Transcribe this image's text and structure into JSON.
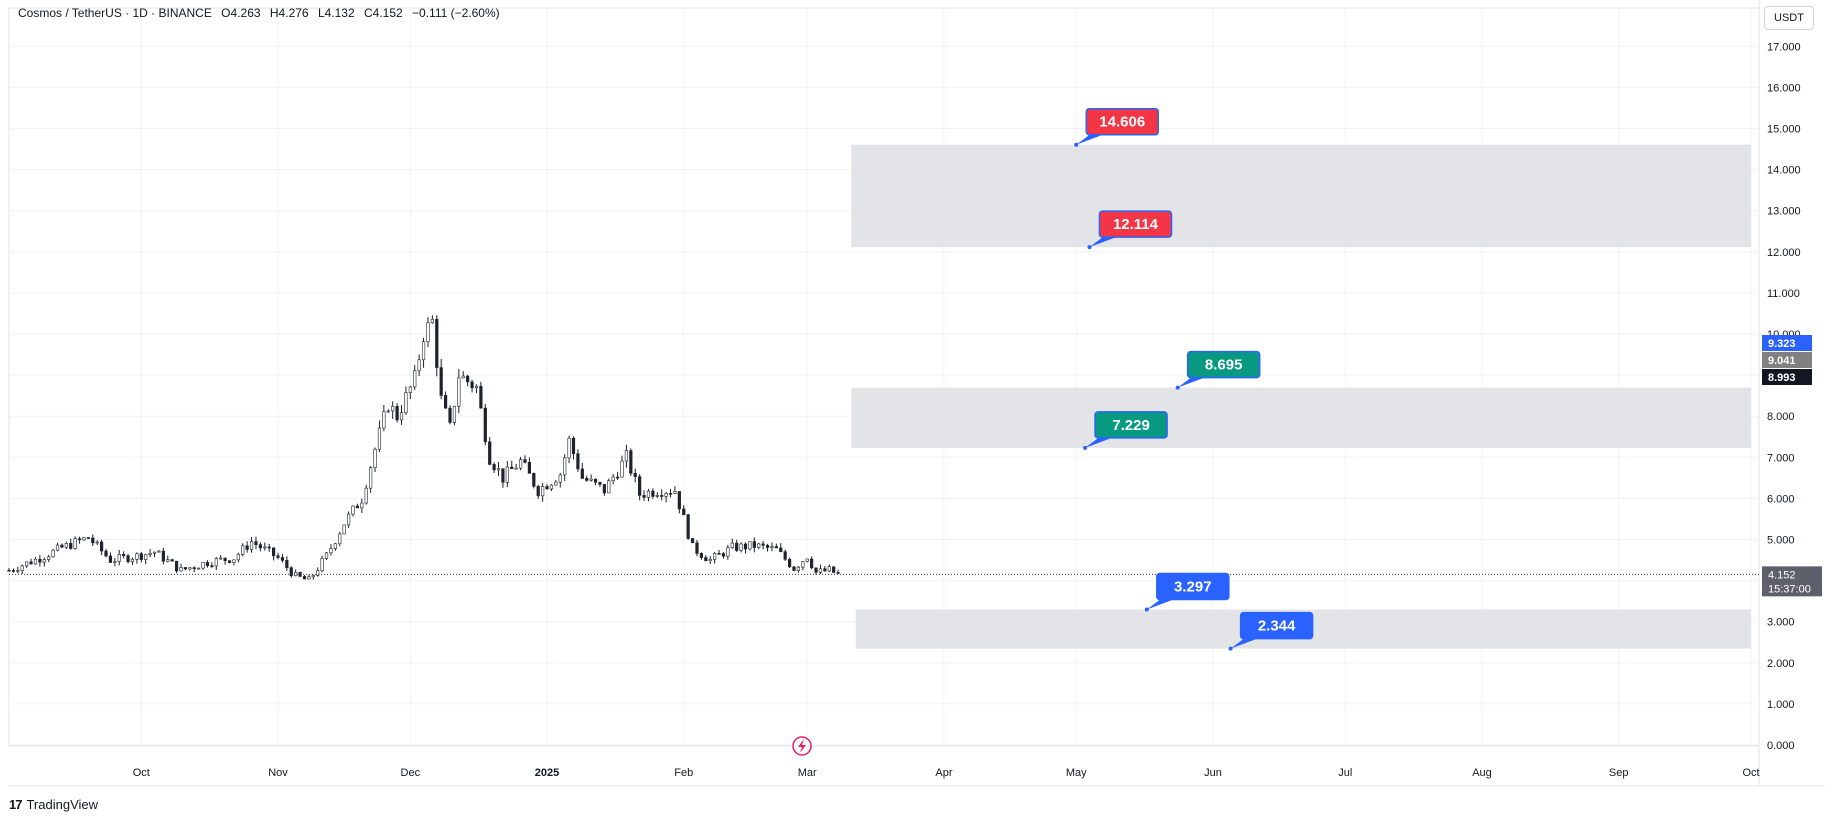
{
  "legend": {
    "symbol": "Cosmos / TetherUS · 1D · BINANCE",
    "open": "O4.263",
    "high": "H4.276",
    "low": "L4.132",
    "close": "C4.152",
    "change": "−0.111 (−2.60%)"
  },
  "currency_button": "USDT",
  "brand": {
    "logo": "17",
    "name": "TradingView"
  },
  "colors": {
    "up": "#089981",
    "down": "#f23645",
    "candle_body": "#1e222d",
    "zone": "#e0e1e5",
    "red_label": "#f23645",
    "green_label": "#089981",
    "blue_label": "#2962ff"
  },
  "chart_data": {
    "type": "candlestick",
    "y_axis": {
      "min": 0,
      "max": 17.8,
      "ticks": [
        "0.000",
        "1.000",
        "2.000",
        "3.000",
        "4.000",
        "5.000",
        "6.000",
        "7.000",
        "8.000",
        "9.000",
        "10.000",
        "11.000",
        "12.000",
        "13.000",
        "14.000",
        "15.000",
        "16.000",
        "17.000"
      ]
    },
    "x_axis": {
      "start_date": "2024-09-01",
      "end_date": "2025-10-01",
      "ticks": [
        {
          "label": "Oct",
          "date": "2024-10-01"
        },
        {
          "label": "Nov",
          "date": "2024-11-01"
        },
        {
          "label": "Dec",
          "date": "2024-12-01"
        },
        {
          "label": "2025",
          "date": "2025-01-01",
          "bold": true
        },
        {
          "label": "Feb",
          "date": "2025-02-01"
        },
        {
          "label": "Mar",
          "date": "2025-03-01"
        },
        {
          "label": "Apr",
          "date": "2025-04-01"
        },
        {
          "label": "May",
          "date": "2025-05-01"
        },
        {
          "label": "Jun",
          "date": "2025-06-01"
        },
        {
          "label": "Jul",
          "date": "2025-07-01"
        },
        {
          "label": "Aug",
          "date": "2025-08-01"
        },
        {
          "label": "Sep",
          "date": "2025-09-01"
        },
        {
          "label": "Oct",
          "date": "2025-10-01"
        }
      ]
    },
    "close_path": [
      {
        "date": "2024-09-01",
        "close": 4.25
      },
      {
        "date": "2024-09-08",
        "close": 4.55
      },
      {
        "date": "2024-09-13",
        "close": 4.8
      },
      {
        "date": "2024-09-19",
        "close": 5.05
      },
      {
        "date": "2024-09-24",
        "close": 4.5
      },
      {
        "date": "2024-09-30",
        "close": 4.6
      },
      {
        "date": "2024-10-04",
        "close": 4.7
      },
      {
        "date": "2024-10-10",
        "close": 4.25
      },
      {
        "date": "2024-10-16",
        "close": 4.45
      },
      {
        "date": "2024-10-22",
        "close": 4.55
      },
      {
        "date": "2024-10-26",
        "close": 4.95
      },
      {
        "date": "2024-11-01",
        "close": 4.55
      },
      {
        "date": "2024-11-05",
        "close": 4.1
      },
      {
        "date": "2024-11-08",
        "close": 4.0
      },
      {
        "date": "2024-11-12",
        "close": 4.6
      },
      {
        "date": "2024-11-16",
        "close": 5.4
      },
      {
        "date": "2024-11-20",
        "close": 6.0
      },
      {
        "date": "2024-11-23",
        "close": 7.2
      },
      {
        "date": "2024-11-26",
        "close": 8.3
      },
      {
        "date": "2024-11-28",
        "close": 8.0
      },
      {
        "date": "2024-12-02",
        "close": 8.9
      },
      {
        "date": "2024-12-04",
        "close": 10.0
      },
      {
        "date": "2024-12-06",
        "close": 10.3
      },
      {
        "date": "2024-12-08",
        "close": 8.4
      },
      {
        "date": "2024-12-10",
        "close": 7.7
      },
      {
        "date": "2024-12-12",
        "close": 9.0
      },
      {
        "date": "2024-12-16",
        "close": 8.7
      },
      {
        "date": "2024-12-19",
        "close": 7.0
      },
      {
        "date": "2024-12-22",
        "close": 6.5
      },
      {
        "date": "2024-12-26",
        "close": 6.9
      },
      {
        "date": "2024-12-30",
        "close": 6.2
      },
      {
        "date": "2025-01-04",
        "close": 6.6
      },
      {
        "date": "2025-01-06",
        "close": 7.4
      },
      {
        "date": "2025-01-09",
        "close": 6.5
      },
      {
        "date": "2025-01-14",
        "close": 6.2
      },
      {
        "date": "2025-01-19",
        "close": 7.0
      },
      {
        "date": "2025-01-22",
        "close": 6.1
      },
      {
        "date": "2025-01-26",
        "close": 6.2
      },
      {
        "date": "2025-01-30",
        "close": 6.2
      },
      {
        "date": "2025-02-03",
        "close": 4.8
      },
      {
        "date": "2025-02-07",
        "close": 4.5
      },
      {
        "date": "2025-02-12",
        "close": 4.8
      },
      {
        "date": "2025-02-17",
        "close": 4.85
      },
      {
        "date": "2025-02-22",
        "close": 4.75
      },
      {
        "date": "2025-02-26",
        "close": 4.3
      },
      {
        "date": "2025-03-01",
        "close": 4.6
      },
      {
        "date": "2025-03-03",
        "close": 4.2
      },
      {
        "date": "2025-03-06",
        "close": 4.25
      },
      {
        "date": "2025-03-08",
        "close": 4.152
      }
    ],
    "current_price": {
      "value": 4.152,
      "label": "4.152",
      "countdown": "15:37:00"
    },
    "price_tags": [
      {
        "value": 9.323,
        "label": "9.323",
        "color": "#2962ff"
      },
      {
        "value": 9.041,
        "label": "9.041",
        "color": "#808080"
      },
      {
        "value": 8.993,
        "label": "8.993",
        "color": "#131722"
      }
    ],
    "zones": [
      {
        "from_date": "2025-03-11",
        "to_date": "2025-10-01",
        "low": 12.114,
        "high": 14.606
      },
      {
        "from_date": "2025-03-11",
        "to_date": "2025-10-01",
        "low": 7.229,
        "high": 8.695
      },
      {
        "from_date": "2025-03-12",
        "to_date": "2025-10-01",
        "low": 2.344,
        "high": 3.297
      }
    ],
    "callouts": [
      {
        "label": "14.606",
        "value": 14.606,
        "date": "2025-05-01",
        "color": "#f23645"
      },
      {
        "label": "12.114",
        "value": 12.114,
        "date": "2025-05-04",
        "color": "#f23645"
      },
      {
        "label": "8.695",
        "value": 8.695,
        "date": "2025-05-24",
        "color": "#089981"
      },
      {
        "label": "7.229",
        "value": 7.229,
        "date": "2025-05-03",
        "color": "#089981"
      },
      {
        "label": "3.297",
        "value": 3.297,
        "date": "2025-05-17",
        "color": "#2962ff"
      },
      {
        "label": "2.344",
        "value": 2.344,
        "date": "2025-06-05",
        "color": "#2962ff"
      }
    ]
  }
}
